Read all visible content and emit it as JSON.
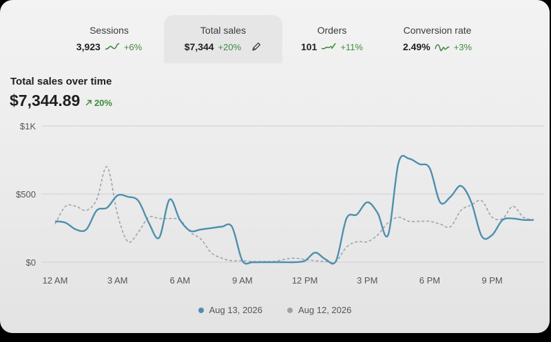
{
  "metrics": [
    {
      "label": "Sessions",
      "value": "3,923",
      "delta": "+6%"
    },
    {
      "label": "Total sales",
      "value": "$7,344",
      "delta": "+20%"
    },
    {
      "label": "Orders",
      "value": "101",
      "delta": "+11%"
    },
    {
      "label": "Conversion rate",
      "value": "2.49%",
      "delta": "+3%"
    }
  ],
  "colors": {
    "current": "#4e8fae",
    "previous": "#9aa3aa",
    "positive": "#3f8a3c",
    "grid": "#cfcfcf"
  },
  "chart_data": {
    "type": "line",
    "title": "Total sales over time",
    "total": "$7,344.89",
    "change": "20%",
    "y_ticks": [
      "$1K",
      "$500",
      "$0"
    ],
    "x_ticks": [
      "12 AM",
      "3 AM",
      "6 AM",
      "9 AM",
      "12 PM",
      "3 PM",
      "6 PM",
      "9 PM"
    ],
    "ylim": [
      0,
      1000
    ],
    "x": [
      0,
      0.5,
      1,
      1.5,
      2,
      2.5,
      3,
      3.5,
      4,
      4.5,
      5,
      5.5,
      6,
      6.5,
      7,
      7.5,
      8,
      8.5,
      9,
      9.5,
      10,
      10.5,
      11,
      11.5,
      12,
      12.5,
      13,
      13.5,
      14,
      14.5,
      15,
      15.5,
      16,
      16.5,
      17,
      17.5,
      18,
      18.5,
      19,
      19.5,
      20,
      20.5,
      21,
      21.5,
      22,
      22.5,
      23
    ],
    "series": [
      {
        "name": "Aug 13, 2026",
        "values": [
          300,
          290,
          240,
          240,
          380,
          400,
          490,
          480,
          450,
          290,
          180,
          460,
          310,
          230,
          240,
          250,
          260,
          260,
          10,
          0,
          0,
          0,
          0,
          0,
          10,
          70,
          20,
          10,
          320,
          350,
          440,
          360,
          200,
          730,
          760,
          720,
          690,
          440,
          480,
          560,
          440,
          190,
          200,
          310,
          320,
          310,
          310
        ]
      },
      {
        "name": "Aug 12, 2026",
        "values": [
          280,
          410,
          410,
          380,
          460,
          700,
          350,
          150,
          220,
          330,
          320,
          320,
          310,
          220,
          170,
          70,
          30,
          10,
          10,
          5,
          5,
          5,
          20,
          30,
          20,
          10,
          5,
          5,
          110,
          150,
          150,
          200,
          290,
          330,
          300,
          300,
          300,
          280,
          260,
          380,
          420,
          450,
          330,
          320,
          410,
          330,
          310
        ]
      }
    ]
  }
}
